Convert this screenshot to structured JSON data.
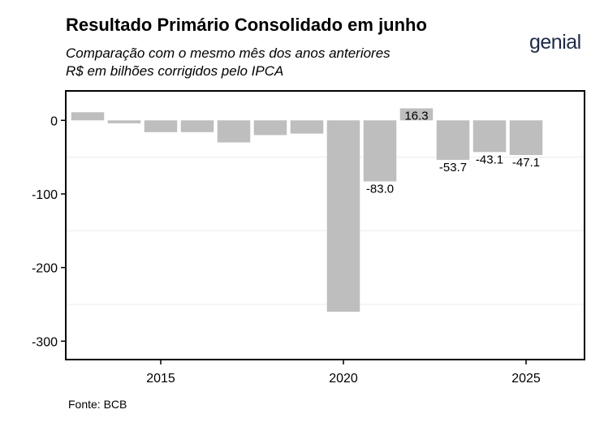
{
  "header": {
    "title": "Resultado Primário Consolidado em junho",
    "subtitle_1": "Comparação com o mesmo mês dos anos anteriores",
    "subtitle_2": "R$ em bilhões corrigidos pelo IPCA",
    "logo_text": "genial"
  },
  "footer": {
    "source": "Fonte: BCB"
  },
  "chart_data": {
    "type": "bar",
    "title": "Resultado Primário Consolidado em junho",
    "xlabel": "",
    "ylabel": "",
    "x": [
      2013,
      2014,
      2015,
      2016,
      2017,
      2018,
      2019,
      2020,
      2021,
      2022,
      2023,
      2024,
      2025
    ],
    "values": [
      11,
      -4,
      -16,
      -16,
      -30,
      -20,
      -18,
      -260,
      -83.0,
      16.3,
      -53.7,
      -43.1,
      -47.1
    ],
    "data_labels": [
      "",
      "",
      "",
      "",
      "",
      "",
      "",
      "",
      "-83.0",
      "16.3",
      "-53.7",
      "-43.1",
      "-47.1"
    ],
    "x_ticks": [
      "2015",
      "2020",
      "2025"
    ],
    "x_tick_values": [
      2015,
      2020,
      2025
    ],
    "y_ticks": [
      "0",
      "-100",
      "-200",
      "-300"
    ],
    "y_tick_values": [
      0,
      -100,
      -200,
      -300
    ],
    "ylim": [
      -325,
      40
    ],
    "xlim": [
      2012.4,
      2026.6
    ],
    "bar_color": "#bebebe",
    "grid": true
  }
}
